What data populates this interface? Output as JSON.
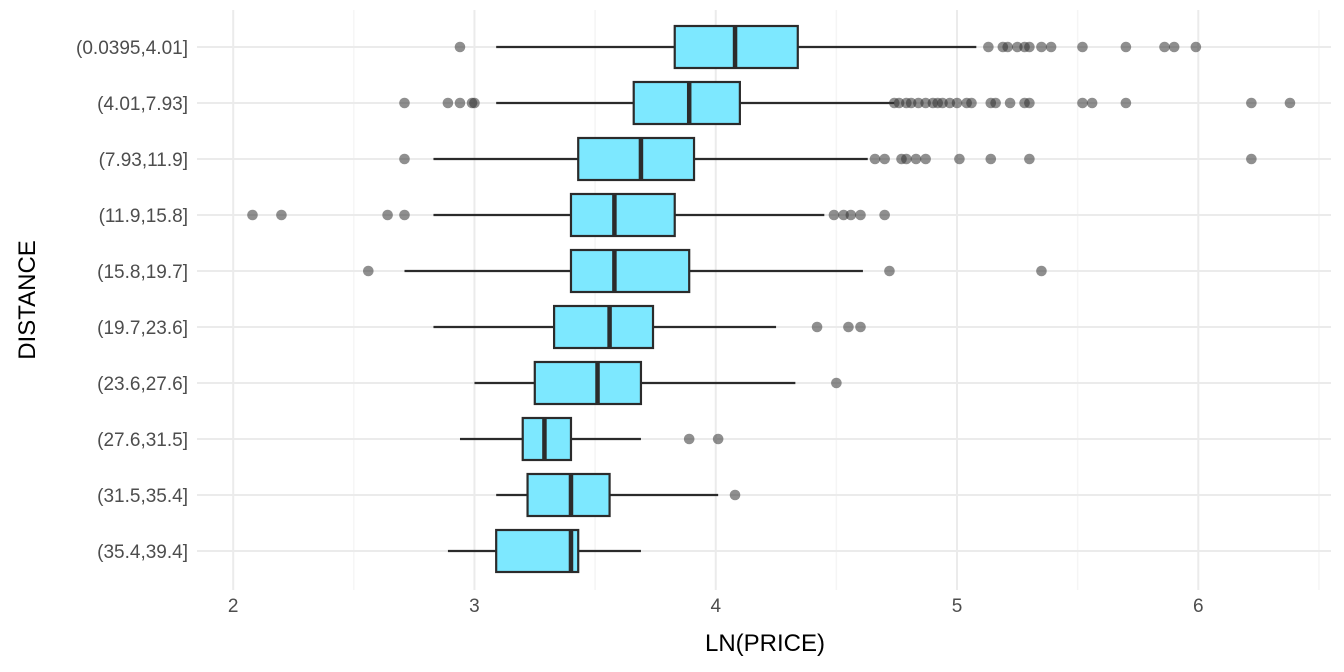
{
  "chart_data": {
    "type": "boxplot",
    "title": "",
    "xlabel": "LN(PRICE)",
    "ylabel": "DISTANCE",
    "xlim": [
      1.85,
      6.55
    ],
    "xticks": [
      2,
      3,
      4,
      5,
      6
    ],
    "grid": true,
    "legend": "none",
    "colors": {
      "box_fill": "#7de8ff",
      "box_stroke": "#2b2b2b",
      "outlier": "#333333",
      "grid_major": "#ebebeb",
      "grid_minor": "#f5f5f5"
    },
    "categories": [
      "(0.0395,4.01]",
      "(4.01,7.93]",
      "(7.93,11.9]",
      "(11.9,15.8]",
      "(15.8,19.7]",
      "(19.7,23.6]",
      "(23.6,27.6]",
      "(27.6,31.5]",
      "(31.5,35.4]",
      "(35.4,39.4]"
    ],
    "boxes": [
      {
        "category": "(0.0395,4.01]",
        "whisker_low": 3.09,
        "q1": 3.83,
        "median": 4.08,
        "q3": 4.34,
        "whisker_high": 5.08,
        "outliers": [
          2.94,
          5.13,
          5.19,
          5.21,
          5.25,
          5.28,
          5.3,
          5.35,
          5.39,
          5.52,
          5.7,
          5.86,
          5.9,
          5.99
        ]
      },
      {
        "category": "(4.01,7.93]",
        "whisker_low": 3.09,
        "q1": 3.66,
        "median": 3.89,
        "q3": 4.1,
        "whisker_high": 4.74,
        "outliers": [
          2.71,
          2.89,
          2.94,
          2.99,
          3.0,
          4.74,
          4.76,
          4.79,
          4.81,
          4.84,
          4.87,
          4.9,
          4.92,
          4.94,
          4.97,
          5.0,
          5.04,
          5.06,
          5.14,
          5.16,
          5.22,
          5.28,
          5.3,
          5.52,
          5.56,
          5.7,
          6.22,
          6.38
        ]
      },
      {
        "category": "(7.93,11.9]",
        "whisker_low": 2.83,
        "q1": 3.43,
        "median": 3.69,
        "q3": 3.91,
        "whisker_high": 4.63,
        "outliers": [
          2.71,
          4.66,
          4.7,
          4.77,
          4.79,
          4.83,
          4.87,
          5.01,
          5.14,
          5.3,
          6.22
        ]
      },
      {
        "category": "(11.9,15.8]",
        "whisker_low": 2.83,
        "q1": 3.4,
        "median": 3.58,
        "q3": 3.83,
        "whisker_high": 4.45,
        "outliers": [
          2.08,
          2.2,
          2.64,
          2.71,
          4.49,
          4.53,
          4.56,
          4.6,
          4.7
        ]
      },
      {
        "category": "(15.8,19.7]",
        "whisker_low": 2.71,
        "q1": 3.4,
        "median": 3.58,
        "q3": 3.89,
        "whisker_high": 4.61,
        "outliers": [
          2.56,
          4.72,
          5.35
        ]
      },
      {
        "category": "(19.7,23.6]",
        "whisker_low": 2.83,
        "q1": 3.33,
        "median": 3.56,
        "q3": 3.74,
        "whisker_high": 4.25,
        "outliers": [
          4.42,
          4.55,
          4.6
        ]
      },
      {
        "category": "(23.6,27.6]",
        "whisker_low": 3.0,
        "q1": 3.25,
        "median": 3.51,
        "q3": 3.69,
        "whisker_high": 4.33,
        "outliers": [
          4.5
        ]
      },
      {
        "category": "(27.6,31.5]",
        "whisker_low": 2.94,
        "q1": 3.2,
        "median": 3.29,
        "q3": 3.4,
        "whisker_high": 3.69,
        "outliers": [
          3.89,
          4.01
        ]
      },
      {
        "category": "(31.5,35.4]",
        "whisker_low": 3.09,
        "q1": 3.22,
        "median": 3.4,
        "q3": 3.56,
        "whisker_high": 4.01,
        "outliers": [
          4.08
        ]
      },
      {
        "category": "(35.4,39.4]",
        "whisker_low": 2.89,
        "q1": 3.09,
        "median": 3.4,
        "q3": 3.43,
        "whisker_high": 3.69,
        "outliers": []
      }
    ]
  }
}
